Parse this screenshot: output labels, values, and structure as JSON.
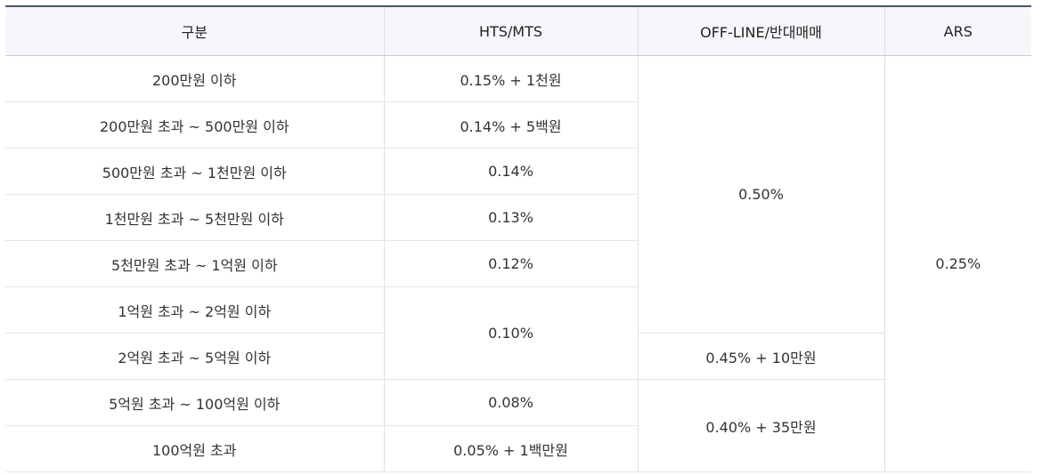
{
  "table": {
    "headers": [
      "구분",
      "HTS/MTS",
      "OFF-LINE/반대매매",
      "ARS"
    ],
    "rows": [
      {
        "range": "200만원 이하",
        "hts": "0.15% + 1천원"
      },
      {
        "range": "200만원 초과 ~ 500만원 이하",
        "hts": "0.14% + 5백원"
      },
      {
        "range": "500만원 초과 ~ 1천만원 이하",
        "hts": "0.14%"
      },
      {
        "range": "1천만원 초과 ~ 5천만원 이하",
        "hts": "0.13%"
      },
      {
        "range": "5천만원 초과 ~ 1억원 이하",
        "hts": "0.12%"
      },
      {
        "range": "1억원 초과 ~ 2억원 이하",
        "hts": "0.10%"
      },
      {
        "range": "2억원 초과 ~ 5억원 이하"
      },
      {
        "range": "5억원 초과 ~ 100억원 이하",
        "hts": "0.08%"
      },
      {
        "range": "100억원 초과",
        "hts": "0.05% + 1백만원"
      }
    ],
    "offline": [
      "0.50%",
      "0.45% + 10만원",
      "0.40% + 35만원"
    ],
    "ars": "0.25%"
  }
}
